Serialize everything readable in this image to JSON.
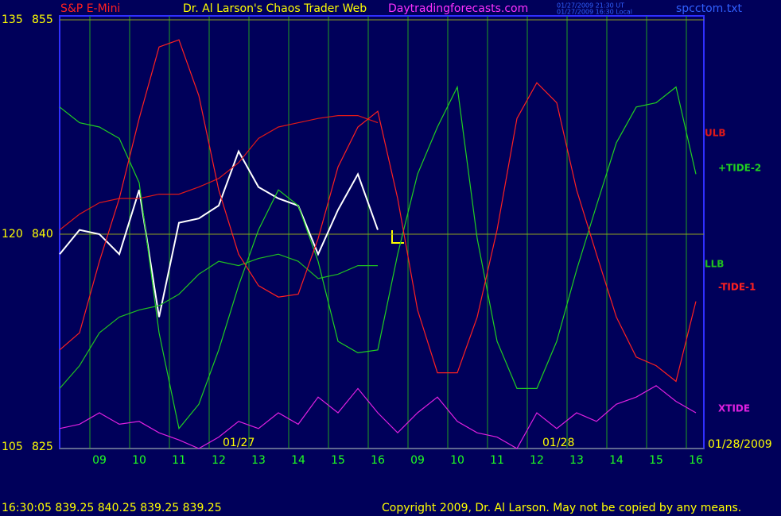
{
  "chart_data": {
    "type": "line",
    "instrument": "S&P E-Mini",
    "title": "Dr. Al Larson's Chaos Trader Web",
    "site": "Daytradingforecasts.com",
    "timestamps": [
      "01/27/2009 21:30 UT",
      "01/27/2009 16:30 Local"
    ],
    "file": "spcctom.txt",
    "date_annotations": [
      "01/27",
      "01/28"
    ],
    "date_label": "01/28/2009",
    "quote": "16:30:05  839.25 840.25 839.25 839.25",
    "copyright": "Copyright 2009, Dr. Al Larson. May not be copied by any means.",
    "xlim": [
      0,
      16.2
    ],
    "xticks": [
      {
        "value": 1,
        "label": "09"
      },
      {
        "value": 2,
        "label": "10"
      },
      {
        "value": 3,
        "label": "11"
      },
      {
        "value": 4,
        "label": "12"
      },
      {
        "value": 5,
        "label": "13"
      },
      {
        "value": 6,
        "label": "14"
      },
      {
        "value": 7,
        "label": "15"
      },
      {
        "value": 8,
        "label": "16"
      },
      {
        "value": 9,
        "label": "09"
      },
      {
        "value": 10,
        "label": "10"
      },
      {
        "value": 11,
        "label": "11"
      },
      {
        "value": 12,
        "label": "12"
      },
      {
        "value": 13,
        "label": "13"
      },
      {
        "value": 14,
        "label": "14"
      },
      {
        "value": 15,
        "label": "15"
      },
      {
        "value": 16,
        "label": "16"
      }
    ],
    "ylim": [
      825,
      855
    ],
    "yticks": [
      825,
      840,
      855
    ],
    "y2lim": [
      105,
      135
    ],
    "y2ticks": [
      105,
      120,
      135
    ],
    "grid": true,
    "x": [
      0,
      0.5,
      1,
      1.5,
      2,
      2.5,
      3,
      3.5,
      4,
      4.5,
      5,
      5.5,
      6,
      6.5,
      7,
      7.5,
      8,
      8.5,
      9,
      9.5,
      10,
      10.5,
      11,
      11.5,
      12,
      12.5,
      13,
      13.5,
      14,
      14.5,
      15,
      15.5,
      16
    ],
    "series": [
      {
        "color": "#ffffff",
        "values": [
          838.6,
          840.3,
          840.0,
          838.6,
          843.1,
          834.2,
          840.8,
          841.1,
          842.0,
          845.8,
          843.3,
          842.5,
          842.0,
          838.6,
          841.7,
          844.2,
          840.3,
          null,
          null,
          null,
          null,
          null,
          null,
          null,
          null,
          null,
          null,
          null,
          null,
          null,
          null,
          null,
          null
        ]
      },
      {
        "name": "ULB",
        "color": "#e01818",
        "values": [
          840.3,
          841.4,
          842.2,
          842.5,
          842.5,
          842.8,
          842.8,
          843.3,
          843.9,
          845.0,
          846.7,
          847.5,
          847.8,
          848.1,
          848.3,
          848.3,
          847.8,
          null,
          null,
          null,
          null,
          null,
          null,
          null,
          null,
          null,
          null,
          null,
          null,
          null,
          null,
          null,
          null
        ]
      },
      {
        "name": "+TIDE-2",
        "color": "#20d020",
        "values": [
          848.9,
          847.8,
          847.5,
          846.7,
          843.6,
          833.1,
          826.4,
          828.1,
          831.9,
          836.4,
          840.3,
          843.1,
          842.0,
          838.1,
          832.5,
          831.7,
          831.9,
          838.6,
          844.2,
          847.5,
          850.3,
          839.7,
          832.5,
          829.2,
          829.2,
          832.5,
          837.5,
          842.0,
          846.4,
          848.9,
          849.2,
          850.3,
          844.2
        ]
      },
      {
        "name": "LLB",
        "color": "#20c020",
        "values": [
          829.2,
          830.8,
          833.1,
          834.2,
          834.7,
          835.0,
          835.8,
          837.2,
          838.1,
          837.8,
          838.3,
          838.6,
          838.1,
          836.9,
          837.2,
          837.8,
          837.8,
          null,
          null,
          null,
          null,
          null,
          null,
          null,
          null,
          null,
          null,
          null,
          null,
          null,
          null,
          null,
          null
        ]
      },
      {
        "name": "-TIDE-1",
        "color": "#ff2020",
        "values": [
          831.9,
          833.1,
          838.1,
          842.5,
          848.1,
          853.1,
          853.6,
          849.7,
          843.1,
          838.6,
          836.4,
          835.6,
          835.8,
          839.7,
          844.7,
          847.5,
          848.6,
          842.5,
          834.7,
          830.3,
          830.3,
          834.2,
          840.3,
          848.1,
          850.6,
          849.2,
          843.1,
          838.6,
          834.2,
          831.4,
          830.8,
          829.7,
          835.3
        ]
      },
      {
        "name": "XTIDE",
        "color": "#e020e0",
        "values": [
          826.4,
          826.7,
          827.5,
          826.7,
          826.9,
          826.1,
          825.6,
          825.0,
          825.8,
          826.9,
          826.4,
          827.5,
          826.7,
          828.6,
          827.5,
          829.2,
          827.5,
          826.1,
          827.5,
          828.6,
          826.9,
          826.1,
          825.8,
          825.0,
          827.5,
          826.4,
          827.5,
          826.9,
          828.1,
          828.6,
          829.4,
          828.3,
          827.5
        ]
      }
    ]
  }
}
